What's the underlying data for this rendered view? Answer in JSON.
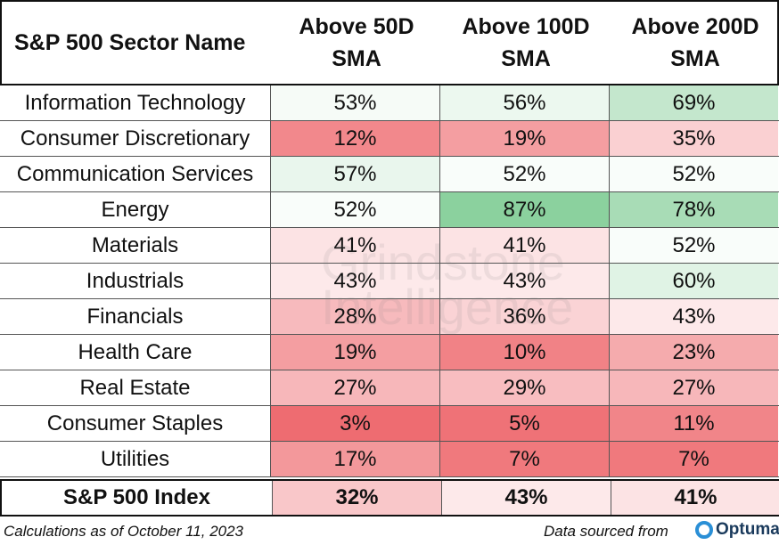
{
  "table": {
    "header": [
      "S&P 500 Sector Name",
      "Above 50D SMA",
      "Above 100D SMA",
      "Above 200D SMA"
    ],
    "rows": [
      [
        "Information Technology",
        "53%",
        "56%",
        "69%"
      ],
      [
        "Consumer Discretionary",
        "12%",
        "19%",
        "35%"
      ],
      [
        "Communication Services",
        "57%",
        "52%",
        "52%"
      ],
      [
        "Energy",
        "52%",
        "87%",
        "78%"
      ],
      [
        "Materials",
        "41%",
        "41%",
        "52%"
      ],
      [
        "Industrials",
        "43%",
        "43%",
        "60%"
      ],
      [
        "Financials",
        "28%",
        "36%",
        "43%"
      ],
      [
        "Health Care",
        "19%",
        "10%",
        "23%"
      ],
      [
        "Real Estate",
        "27%",
        "29%",
        "27%"
      ],
      [
        "Consumer Staples",
        "3%",
        "5%",
        "11%"
      ],
      [
        "Utilities",
        "17%",
        "7%",
        "7%"
      ]
    ],
    "total": [
      "S&P 500 Index",
      "32%",
      "43%",
      "41%"
    ]
  },
  "footer": {
    "note": "Calculations as of October 11, 2023",
    "source": "Data sourced from",
    "logo": "Optuma"
  },
  "watermark": "Grindstone Intelligence"
}
